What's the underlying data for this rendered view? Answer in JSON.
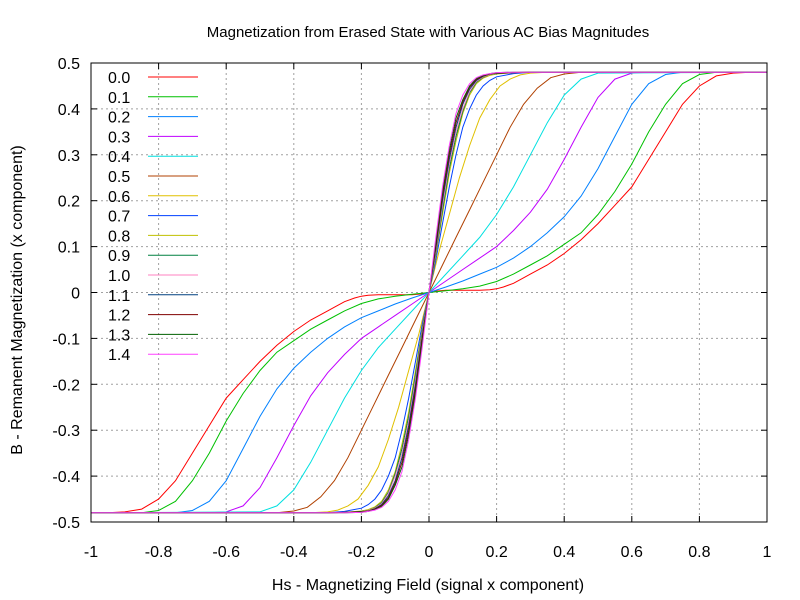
{
  "chart_data": {
    "type": "line",
    "title": "Magnetization from Erased State with Various AC Bias Magnitudes",
    "xlabel": "Hs - Magnetizing Field (signal x component)",
    "ylabel": "B - Remanent Magnetization (x component)",
    "xlim": [
      -1,
      1
    ],
    "ylim": [
      -0.5,
      0.5
    ],
    "xticks": [
      "-1",
      "-0.8",
      "-0.6",
      "-0.4",
      "-0.2",
      "0",
      "0.2",
      "0.4",
      "0.6",
      "0.8",
      "1"
    ],
    "yticks": [
      "-0.5",
      "-0.4",
      "-0.3",
      "-0.2",
      "-0.1",
      "0",
      "0.1",
      "0.2",
      "0.3",
      "0.4",
      "0.5"
    ],
    "grid": true,
    "legend_position": "top-left",
    "saturation": 0.48,
    "series": [
      {
        "name": "0.0",
        "color": "#ff0000",
        "x": [
          0,
          0.02,
          0.05,
          0.08,
          0.1,
          0.12,
          0.15,
          0.18,
          0.2,
          0.22,
          0.25,
          0.28,
          0.3,
          0.35,
          0.4,
          0.45,
          0.5,
          0.55,
          0.6,
          0.65,
          0.7,
          0.75,
          0.8,
          0.85,
          0.9,
          0.95,
          1.0
        ],
        "y": [
          0,
          0.003,
          0.005,
          0.005,
          0.005,
          0.005,
          0.005,
          0.006,
          0.008,
          0.012,
          0.02,
          0.032,
          0.04,
          0.06,
          0.085,
          0.115,
          0.15,
          0.19,
          0.23,
          0.29,
          0.35,
          0.41,
          0.45,
          0.472,
          0.478,
          0.48,
          0.48
        ]
      },
      {
        "name": "0.1",
        "color": "#00c000",
        "x": [
          0,
          0.05,
          0.1,
          0.15,
          0.2,
          0.25,
          0.3,
          0.35,
          0.4,
          0.45,
          0.5,
          0.55,
          0.6,
          0.65,
          0.7,
          0.75,
          0.8,
          0.85,
          1.0
        ],
        "y": [
          0,
          0.004,
          0.008,
          0.014,
          0.024,
          0.04,
          0.06,
          0.08,
          0.105,
          0.13,
          0.17,
          0.22,
          0.28,
          0.35,
          0.41,
          0.455,
          0.475,
          0.48,
          0.48
        ]
      },
      {
        "name": "0.2",
        "color": "#0080ff",
        "x": [
          0,
          0.05,
          0.1,
          0.15,
          0.2,
          0.25,
          0.3,
          0.35,
          0.4,
          0.45,
          0.5,
          0.55,
          0.6,
          0.65,
          0.7,
          0.75,
          1.0
        ],
        "y": [
          0,
          0.012,
          0.025,
          0.04,
          0.055,
          0.075,
          0.1,
          0.13,
          0.165,
          0.21,
          0.27,
          0.34,
          0.41,
          0.455,
          0.475,
          0.48,
          0.48
        ]
      },
      {
        "name": "0.3",
        "color": "#c000ff",
        "x": [
          0,
          0.05,
          0.1,
          0.15,
          0.2,
          0.25,
          0.3,
          0.35,
          0.4,
          0.45,
          0.5,
          0.55,
          0.6,
          0.65,
          1.0
        ],
        "y": [
          0,
          0.025,
          0.05,
          0.075,
          0.1,
          0.135,
          0.175,
          0.225,
          0.29,
          0.36,
          0.425,
          0.465,
          0.478,
          0.48,
          0.48
        ]
      },
      {
        "name": "0.4",
        "color": "#00e0e0",
        "x": [
          0,
          0.05,
          0.1,
          0.15,
          0.2,
          0.25,
          0.3,
          0.35,
          0.4,
          0.45,
          0.5,
          1.0
        ],
        "y": [
          0,
          0.04,
          0.08,
          0.12,
          0.17,
          0.23,
          0.3,
          0.37,
          0.43,
          0.465,
          0.478,
          0.48
        ]
      },
      {
        "name": "0.5",
        "color": "#b04000",
        "x": [
          0,
          0.04,
          0.08,
          0.12,
          0.16,
          0.2,
          0.24,
          0.28,
          0.32,
          0.36,
          0.4,
          0.45,
          1.0
        ],
        "y": [
          0,
          0.06,
          0.12,
          0.18,
          0.24,
          0.3,
          0.36,
          0.41,
          0.445,
          0.468,
          0.476,
          0.48,
          0.48
        ]
      },
      {
        "name": "0.6",
        "color": "#e0c000",
        "x": [
          0,
          0.03,
          0.06,
          0.09,
          0.12,
          0.15,
          0.18,
          0.21,
          0.24,
          0.27,
          0.3,
          0.35,
          1.0
        ],
        "y": [
          0,
          0.09,
          0.17,
          0.25,
          0.32,
          0.38,
          0.42,
          0.45,
          0.465,
          0.474,
          0.478,
          0.48,
          0.48
        ]
      },
      {
        "name": "0.7",
        "color": "#0040ff",
        "x": [
          0,
          0.02,
          0.04,
          0.06,
          0.08,
          0.1,
          0.12,
          0.14,
          0.16,
          0.18,
          0.2,
          0.25,
          0.3,
          1.0
        ],
        "y": [
          0,
          0.07,
          0.15,
          0.23,
          0.3,
          0.36,
          0.4,
          0.43,
          0.45,
          0.462,
          0.47,
          0.477,
          0.48,
          0.48
        ]
      },
      {
        "name": "0.8",
        "color": "#c0c000",
        "x": [
          0,
          0.02,
          0.04,
          0.06,
          0.08,
          0.1,
          0.12,
          0.14,
          0.16,
          0.18,
          0.2,
          0.25,
          0.3,
          1.0
        ],
        "y": [
          0,
          0.08,
          0.17,
          0.26,
          0.33,
          0.39,
          0.43,
          0.455,
          0.467,
          0.473,
          0.476,
          0.479,
          0.48,
          0.48
        ]
      },
      {
        "name": "0.9",
        "color": "#008040",
        "x": [
          0,
          0.02,
          0.04,
          0.06,
          0.08,
          0.1,
          0.12,
          0.14,
          0.16,
          0.18,
          0.2,
          0.25,
          0.3,
          1.0
        ],
        "y": [
          0,
          0.085,
          0.18,
          0.27,
          0.34,
          0.395,
          0.435,
          0.458,
          0.469,
          0.475,
          0.477,
          0.479,
          0.48,
          0.48
        ]
      },
      {
        "name": "1.0",
        "color": "#ff80c0",
        "x": [
          0,
          0.02,
          0.04,
          0.06,
          0.08,
          0.1,
          0.12,
          0.14,
          0.16,
          0.18,
          0.2,
          0.25,
          0.3,
          1.0
        ],
        "y": [
          0,
          0.09,
          0.19,
          0.28,
          0.35,
          0.4,
          0.438,
          0.46,
          0.47,
          0.475,
          0.478,
          0.479,
          0.48,
          0.48
        ]
      },
      {
        "name": "1.1",
        "color": "#004080",
        "x": [
          0,
          0.02,
          0.04,
          0.06,
          0.08,
          0.1,
          0.12,
          0.14,
          0.16,
          0.18,
          0.2,
          0.25,
          0.3,
          1.0
        ],
        "y": [
          0,
          0.095,
          0.2,
          0.29,
          0.36,
          0.41,
          0.443,
          0.462,
          0.471,
          0.476,
          0.478,
          0.479,
          0.48,
          0.48
        ]
      },
      {
        "name": "1.2",
        "color": "#800000",
        "x": [
          0,
          0.02,
          0.04,
          0.06,
          0.08,
          0.1,
          0.12,
          0.14,
          0.16,
          0.18,
          0.2,
          0.25,
          0.3,
          1.0
        ],
        "y": [
          0,
          0.1,
          0.21,
          0.3,
          0.37,
          0.415,
          0.447,
          0.464,
          0.472,
          0.476,
          0.478,
          0.479,
          0.48,
          0.48
        ]
      },
      {
        "name": "1.3",
        "color": "#006000",
        "x": [
          0,
          0.02,
          0.04,
          0.06,
          0.08,
          0.1,
          0.12,
          0.14,
          0.16,
          0.18,
          0.2,
          0.25,
          0.3,
          1.0
        ],
        "y": [
          0,
          0.11,
          0.22,
          0.31,
          0.38,
          0.42,
          0.45,
          0.466,
          0.473,
          0.477,
          0.479,
          0.48,
          0.48,
          0.48
        ]
      },
      {
        "name": "1.4",
        "color": "#ff40ff",
        "x": [
          0,
          0.02,
          0.04,
          0.06,
          0.08,
          0.1,
          0.12,
          0.14,
          0.16,
          0.18,
          0.2,
          0.25,
          0.3,
          1.0
        ],
        "y": [
          0,
          0.12,
          0.23,
          0.32,
          0.39,
          0.43,
          0.455,
          0.468,
          0.474,
          0.477,
          0.479,
          0.48,
          0.48,
          0.48
        ]
      }
    ]
  }
}
